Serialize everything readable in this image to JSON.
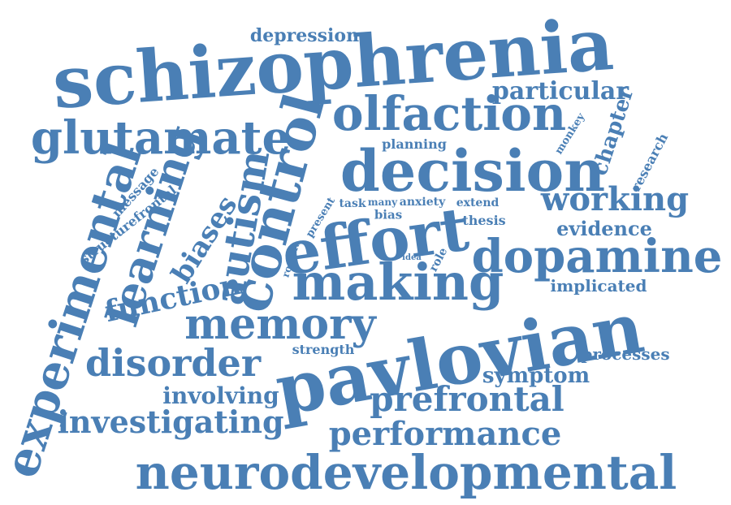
{
  "style": {
    "word_color": "#4A7FB5",
    "background": "#FFFFFF"
  },
  "words": [
    "schizophrenia",
    "depression",
    "olfaction",
    "glutamate",
    "particular",
    "decision",
    "planning",
    "working",
    "evidence",
    "dopamine",
    "implicated",
    "making",
    "pavlovian",
    "memory",
    "disorder",
    "investigating",
    "neurodevelopmental",
    "performance",
    "prefrontal",
    "symptom",
    "processes",
    "strength",
    "involving",
    "function",
    "experimental",
    "learning",
    "biases",
    "autism",
    "control",
    "effort",
    "message",
    "structurefrontal",
    "chapter",
    "monkey",
    "research",
    "present",
    "task",
    "many",
    "anxiety",
    "extend",
    "bias",
    "thesis",
    "idea",
    "role",
    "rodent"
  ]
}
